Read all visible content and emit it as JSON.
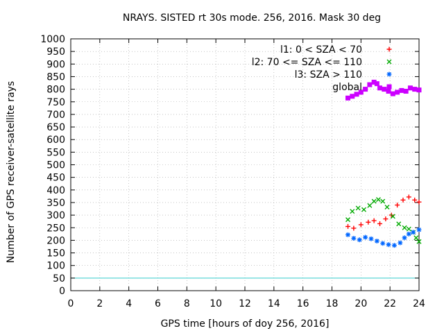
{
  "chart_data": {
    "type": "scatter",
    "title": "NRAYS. SISTED rt 30s mode. 256, 2016. Mask 30 deg",
    "xlabel": "GPS time [hours of doy 256, 2016]",
    "ylabel": "Number of GPS receiver-satellite rays",
    "xlim": [
      0,
      24
    ],
    "ylim": [
      0,
      1000
    ],
    "xticks": [
      0,
      2,
      4,
      6,
      8,
      10,
      12,
      14,
      16,
      18,
      20,
      22,
      24
    ],
    "yticks": [
      0,
      50,
      100,
      150,
      200,
      250,
      300,
      350,
      400,
      450,
      500,
      550,
      600,
      650,
      700,
      750,
      800,
      850,
      900,
      950,
      1000
    ],
    "grid": true,
    "legend_position": "top-right",
    "reference_line": {
      "y": 50,
      "color": "#33cccc"
    },
    "series": [
      {
        "name": "l1: 0 < SZA < 70",
        "marker": "+",
        "color": "#ff0000",
        "x": [
          19.1,
          19.5,
          20.0,
          20.5,
          20.9,
          21.3,
          21.7,
          22.1,
          22.5,
          22.9,
          23.3,
          23.7,
          24.0
        ],
        "y": [
          255,
          248,
          262,
          272,
          278,
          266,
          285,
          300,
          340,
          360,
          372,
          360,
          352
        ]
      },
      {
        "name": "l2: 70 <= SZA <= 110",
        "marker": "x",
        "color": "#00aa00",
        "x": [
          19.1,
          19.4,
          19.8,
          20.2,
          20.6,
          20.9,
          21.2,
          21.5,
          21.8,
          22.2,
          22.6,
          23.0,
          23.3,
          23.6,
          23.8,
          24.0
        ],
        "y": [
          282,
          315,
          328,
          322,
          338,
          355,
          362,
          355,
          332,
          295,
          265,
          250,
          245,
          232,
          210,
          195
        ]
      },
      {
        "name": "l3: SZA > 110",
        "marker": "*",
        "color": "#0066ff",
        "x": [
          19.1,
          19.5,
          19.9,
          20.3,
          20.7,
          21.1,
          21.5,
          21.9,
          22.3,
          22.7,
          23.0,
          23.3,
          23.6,
          24.0
        ],
        "y": [
          222,
          208,
          202,
          212,
          206,
          197,
          188,
          183,
          180,
          190,
          210,
          225,
          232,
          242
        ]
      },
      {
        "name": "global",
        "marker": "square",
        "color": "#cc00ff",
        "x": [
          19.1,
          19.4,
          19.7,
          20.0,
          20.3,
          20.6,
          20.9,
          21.1,
          21.3,
          21.6,
          21.9,
          22.2,
          22.5,
          22.8,
          23.1,
          23.4,
          23.7,
          24.0
        ],
        "y": [
          765,
          772,
          780,
          788,
          800,
          818,
          828,
          822,
          805,
          800,
          792,
          782,
          788,
          795,
          792,
          805,
          800,
          797
        ]
      }
    ]
  }
}
